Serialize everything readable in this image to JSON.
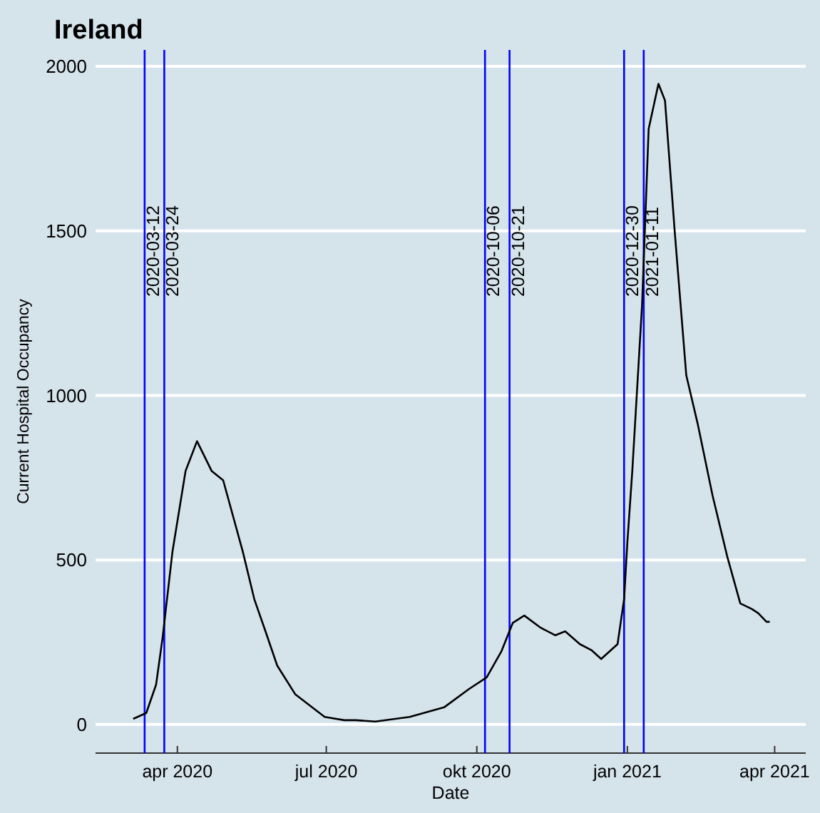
{
  "chart_data": {
    "type": "line",
    "title": "Ireland",
    "xlabel": "Date",
    "ylabel": "Current Hospital Occupancy",
    "xlim": [
      "2020-02-11",
      "2021-04-20"
    ],
    "xticks": [
      {
        "value": "2020-04-01",
        "label": "apr 2020"
      },
      {
        "value": "2020-07-01",
        "label": "jul 2020"
      },
      {
        "value": "2020-10-01",
        "label": "okt 2020"
      },
      {
        "value": "2021-01-01",
        "label": "jan 2021"
      },
      {
        "value": "2021-04-01",
        "label": "apr 2021"
      }
    ],
    "ylim": [
      -87,
      2050
    ],
    "yticks": [
      0,
      500,
      1000,
      1500,
      2000
    ],
    "grid": "y",
    "x": [
      "2020-03-05",
      "2020-03-13",
      "2020-03-19",
      "2020-03-23",
      "2020-03-29",
      "2020-04-06",
      "2020-04-13",
      "2020-04-22",
      "2020-04-29",
      "2020-05-11",
      "2020-05-18",
      "2020-05-25",
      "2020-06-01",
      "2020-06-12",
      "2020-06-30",
      "2020-07-12",
      "2020-07-19",
      "2020-07-31",
      "2020-08-21",
      "2020-09-11",
      "2020-09-26",
      "2020-10-07",
      "2020-10-16",
      "2020-10-23",
      "2020-10-30",
      "2020-11-09",
      "2020-11-18",
      "2020-11-24",
      "2020-12-03",
      "2020-12-10",
      "2020-12-16",
      "2020-12-26",
      "2020-12-30",
      "2021-01-01",
      "2021-01-04",
      "2021-01-10",
      "2021-01-14",
      "2021-01-20",
      "2021-01-24",
      "2021-01-30",
      "2021-02-06",
      "2021-02-13",
      "2021-02-22",
      "2021-03-03",
      "2021-03-11",
      "2021-03-18",
      "2021-03-22",
      "2021-03-27",
      "2021-03-29"
    ],
    "series": [
      {
        "color": "#000000",
        "values": [
          17,
          35,
          121,
          265,
          525,
          770,
          861,
          770,
          742,
          525,
          381,
          281,
          179,
          92,
          23,
          13,
          13,
          9,
          23,
          52,
          107,
          143,
          222,
          309,
          331,
          294,
          271,
          283,
          244,
          226,
          199,
          244,
          381,
          554,
          770,
          1277,
          1810,
          1947,
          1896,
          1494,
          1061,
          913,
          697,
          511,
          368,
          351,
          338,
          312,
          312
        ]
      }
    ],
    "ref_lines": [
      {
        "axis": "x",
        "value": "2020-03-12",
        "label": "2020-03-12",
        "color": "#0000ff"
      },
      {
        "axis": "x",
        "value": "2020-03-24",
        "label": "2020-03-24",
        "color": "#0000ff"
      },
      {
        "axis": "x",
        "value": "2020-10-06",
        "label": "2020-10-06",
        "color": "#0000ff"
      },
      {
        "axis": "x",
        "value": "2020-10-21",
        "label": "2020-10-21",
        "color": "#0000ff"
      },
      {
        "axis": "x",
        "value": "2020-12-30",
        "label": "2020-12-30",
        "color": "#0000ff"
      },
      {
        "axis": "x",
        "value": "2021-01-11",
        "label": "2021-01-11",
        "color": "#0000ff"
      }
    ],
    "line_style": "solid"
  }
}
